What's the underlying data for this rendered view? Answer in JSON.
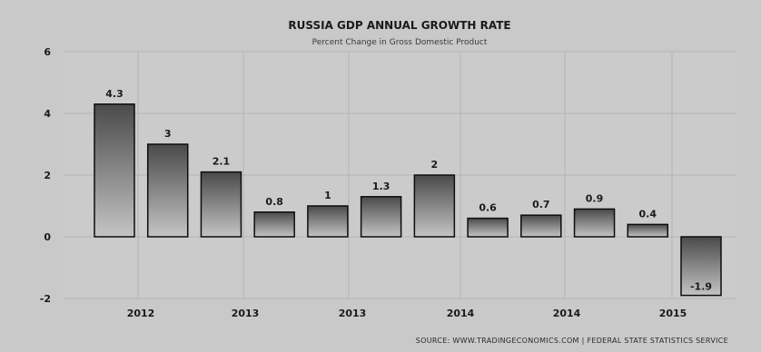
{
  "chart_data": {
    "type": "bar",
    "title": "RUSSIA GDP ANNUAL GROWTH RATE",
    "subtitle": "Percent Change in Gross Domestic Product",
    "xlabel": "",
    "ylabel": "",
    "ylim": [
      -2,
      6
    ],
    "yticks": [
      -2,
      0,
      2,
      4,
      6
    ],
    "grid": true,
    "legend": "none",
    "x_tick_labels": [
      "2012",
      "2013",
      "2013",
      "2014",
      "2014",
      "2015"
    ],
    "categories": [
      "",
      "",
      "",
      "",
      "",
      "",
      "",
      "",
      "",
      "",
      "",
      ""
    ],
    "values": [
      4.3,
      3,
      2.1,
      0.8,
      1,
      1.3,
      2,
      0.6,
      0.7,
      0.9,
      0.4,
      -1.9
    ],
    "data_labels": [
      "4.3",
      "3",
      "2.1",
      "0.8",
      "1",
      "1.3",
      "2",
      "0.6",
      "0.7",
      "0.9",
      "0.4",
      "-1.9"
    ],
    "source": "SOURCE: WWW.TRADINGECONOMICS.COM | FEDERAL STATE STATISTICS SERVICE",
    "colors": {
      "background": "#c9c9c9",
      "plot_background": "#cbcbcb",
      "grid": "#b5b5b5",
      "bar_top": "#4a4a4a",
      "bar_bottom": "#c4c4c4",
      "bar_stroke": "#0d0d0d",
      "text": "#1a1a1a"
    }
  }
}
